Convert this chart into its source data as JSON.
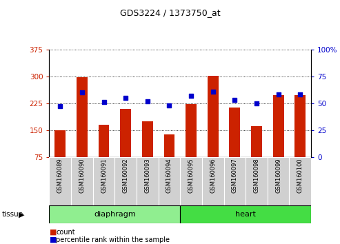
{
  "title": "GDS3224 / 1373750_at",
  "samples": [
    "GSM160089",
    "GSM160090",
    "GSM160091",
    "GSM160092",
    "GSM160093",
    "GSM160094",
    "GSM160095",
    "GSM160096",
    "GSM160097",
    "GSM160098",
    "GSM160099",
    "GSM160100"
  ],
  "count_values": [
    150,
    298,
    165,
    210,
    175,
    137,
    222,
    302,
    213,
    160,
    248,
    248
  ],
  "percentile_values": [
    47,
    60,
    51,
    55,
    52,
    48,
    57,
    61,
    53,
    50,
    58,
    58
  ],
  "n_diaphragm": 6,
  "n_heart": 6,
  "ylim_left": [
    75,
    375
  ],
  "ylim_right": [
    0,
    100
  ],
  "yticks_left": [
    75,
    150,
    225,
    300,
    375
  ],
  "yticks_right": [
    0,
    25,
    50,
    75,
    100
  ],
  "bar_color": "#cc2200",
  "dot_color": "#0000cc",
  "diaphragm_color": "#90ee90",
  "heart_color": "#44dd44",
  "grid_color": "#000000",
  "tick_bg": "#cccccc",
  "bar_width": 0.5
}
